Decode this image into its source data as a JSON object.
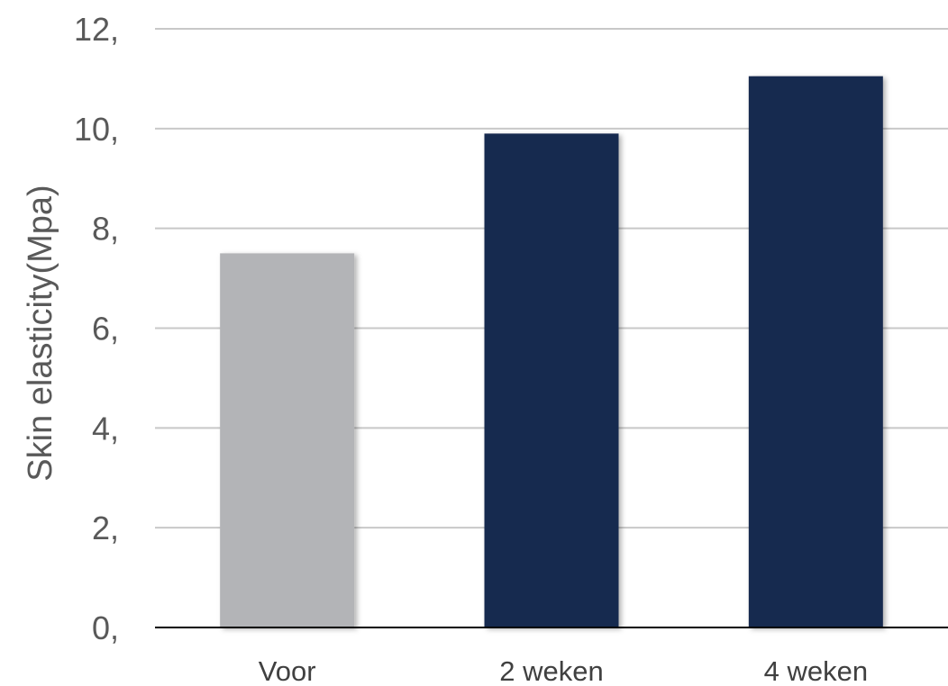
{
  "chart_data": {
    "type": "bar",
    "title": "",
    "xlabel": "",
    "ylabel": "Skin elasticity(Mpa)",
    "categories": [
      "Voor",
      "2 weken",
      "4 weken"
    ],
    "values": [
      7.5,
      9.9,
      11.05
    ],
    "bar_colors": [
      "#b3b4b7",
      "#18294f",
      "#18294f"
    ],
    "ylim": [
      0,
      12
    ],
    "yticks": [
      0,
      2,
      4,
      6,
      8,
      10,
      12
    ],
    "ytick_labels": [
      "0,",
      "2,",
      "4,",
      "6,",
      "8,",
      "10,",
      "12,"
    ],
    "grid": true,
    "gridline_color": "#c8c8c8",
    "baseline_color": "#000000",
    "legend": "none"
  }
}
